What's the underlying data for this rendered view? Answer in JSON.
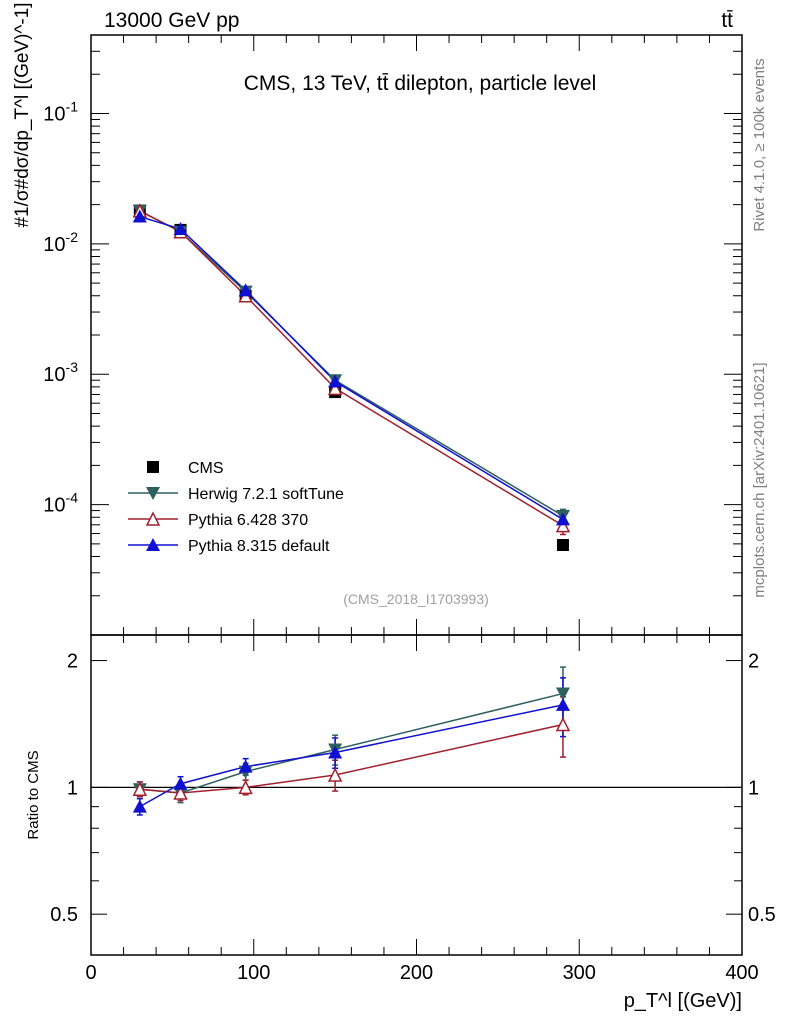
{
  "header": {
    "left": "13000 GeV pp",
    "right": "tt̄"
  },
  "side_labels": {
    "rivet": "Rivet 4.1.0, ≥ 100k events",
    "mcplots": "mcplots.cern.ch [arXiv:2401.10621]"
  },
  "chart_data": [
    {
      "type": "line",
      "panel": "main",
      "title": "CMS, 13 TeV, tt̄ dilepton, particle level",
      "watermark": "(CMS_2018_I1703993)",
      "ylabel": "#1/σ#dσ/dp_T^l [(GeV)^-1]",
      "yscale": "log",
      "xlim": [
        0,
        400
      ],
      "ylim": [
        1e-05,
        0.4
      ],
      "x_ticks": [
        0,
        100,
        200,
        300,
        400
      ],
      "y_tick_labels": [
        "10^-4",
        "10^-3",
        "10^-2",
        "10^-1"
      ],
      "legend_position": "bottom-left",
      "x": [
        30,
        55,
        95,
        150,
        290
      ],
      "series": [
        {
          "name": "CMS",
          "color": "#000000",
          "marker": "square",
          "values": [
            0.018,
            0.0128,
            0.004,
            0.00073,
            4.9e-05
          ]
        },
        {
          "name": "Herwig 7.2.1 softTune",
          "color": "#2e6060",
          "marker": "triangle-down",
          "values": [
            0.0179,
            0.0124,
            0.0043,
            0.0009,
            8.2e-05
          ],
          "errors": [
            0.0005,
            0.0004,
            0.00012,
            3e-05,
            1e-05
          ]
        },
        {
          "name": "Pythia 6.428 370",
          "color": "#a0202e",
          "marker": "triangle-open",
          "values": [
            0.0179,
            0.0124,
            0.004,
            0.00078,
            6.9e-05
          ],
          "errors": [
            0.0005,
            0.0004,
            0.00012,
            3e-05,
            1e-05
          ]
        },
        {
          "name": "Pythia 8.315 default",
          "color": "#1010d0",
          "marker": "triangle-up",
          "values": [
            0.0162,
            0.013,
            0.0044,
            0.00088,
            7.7e-05
          ],
          "errors": [
            0.0005,
            0.0004,
            0.00012,
            3e-05,
            1e-05
          ]
        }
      ]
    },
    {
      "type": "line",
      "panel": "ratio",
      "ylabel": "Ratio to CMS",
      "xlabel": "p_T^l [(GeV)]",
      "xlim": [
        0,
        400
      ],
      "ylim": [
        0.4,
        2.3
      ],
      "x_ticks": [
        0,
        100,
        200,
        300,
        400
      ],
      "y_ticks": [
        0.5,
        1,
        2
      ],
      "reference": 1,
      "x": [
        30,
        55,
        95,
        150,
        290
      ],
      "series": [
        {
          "name": "Herwig 7.2.1 softTune",
          "color": "#2e6060",
          "marker": "triangle-down",
          "values": [
            0.99,
            0.97,
            1.09,
            1.23,
            1.67
          ],
          "errors": [
            0.04,
            0.05,
            0.05,
            0.1,
            0.26
          ]
        },
        {
          "name": "Pythia 6.428 370",
          "color": "#a0202e",
          "marker": "triangle-open",
          "values": [
            0.99,
            0.97,
            1.0,
            1.07,
            1.41
          ],
          "errors": [
            0.04,
            0.04,
            0.04,
            0.09,
            0.23
          ]
        },
        {
          "name": "Pythia 8.315 default",
          "color": "#1010d0",
          "marker": "triangle-up",
          "values": [
            0.9,
            1.02,
            1.12,
            1.21,
            1.57
          ],
          "errors": [
            0.04,
            0.04,
            0.05,
            0.1,
            0.25
          ]
        }
      ]
    }
  ]
}
